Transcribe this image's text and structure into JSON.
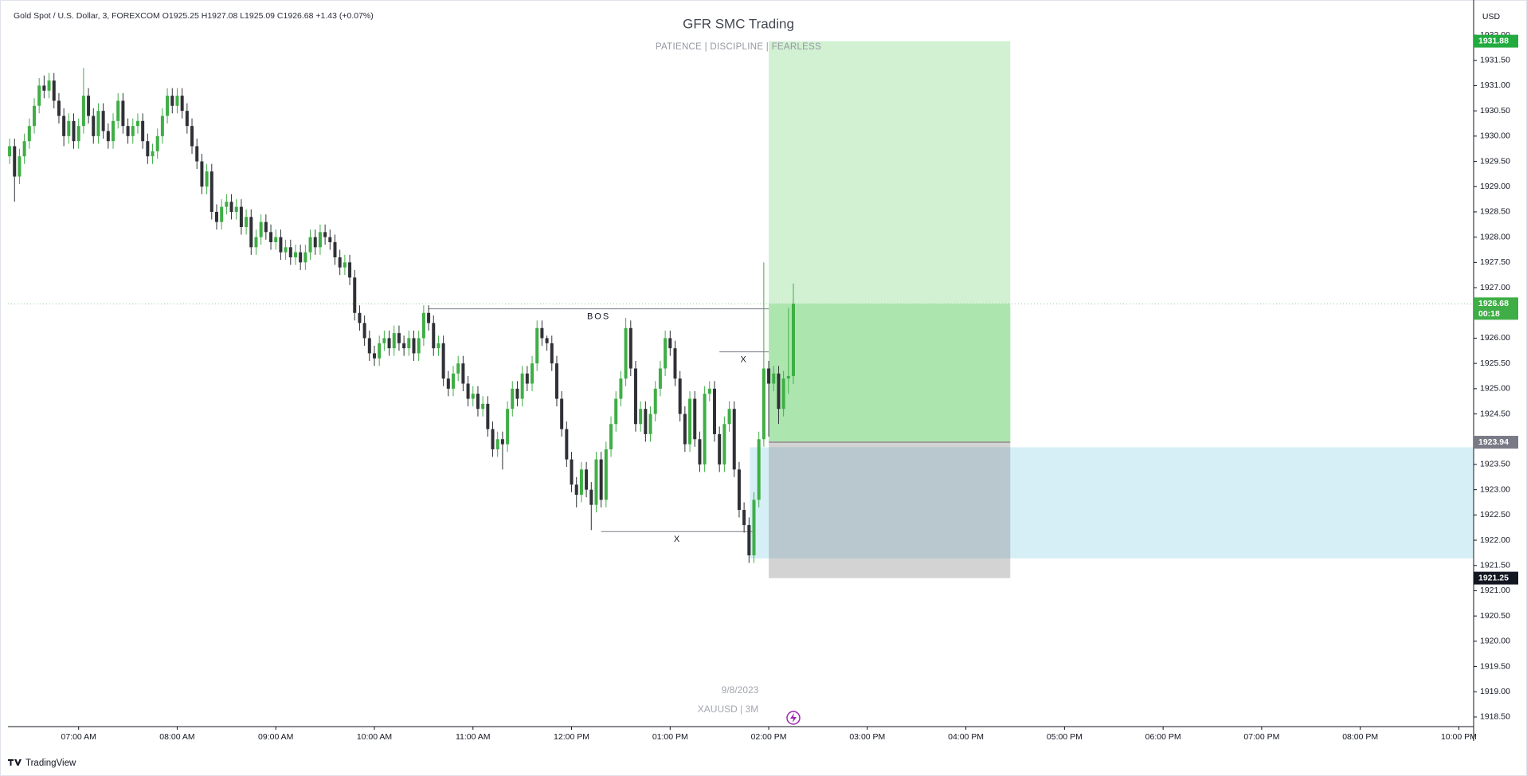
{
  "chart_data": {
    "type": "candlestick",
    "header": "Gold Spot / U.S. Dollar, 3, FOREXCOM  O1925.25  H1927.08  L1925.09  C1926.68  +1.43 (+0.07%)",
    "title": "GFR SMC Trading",
    "subtitle": "PATIENCE  |  DISCIPLINE  |  FEARLESS",
    "watermark": [
      "9/8/2023",
      "XAUUSD | 3M"
    ],
    "currency": "USD",
    "brand": "TradingView",
    "up_color": "#3fae46",
    "down_color": "#2f3136",
    "xlim": [
      377,
      1269
    ],
    "ylim": [
      1918.31,
      1932.6
    ],
    "grid": false,
    "xticks": [
      {
        "value": 420,
        "label": "07:00 AM"
      },
      {
        "value": 480,
        "label": "08:00 AM"
      },
      {
        "value": 540,
        "label": "09:00 AM"
      },
      {
        "value": 600,
        "label": "10:00 AM"
      },
      {
        "value": 660,
        "label": "11:00 AM"
      },
      {
        "value": 720,
        "label": "12:00 PM"
      },
      {
        "value": 780,
        "label": "01:00 PM"
      },
      {
        "value": 840,
        "label": "02:00 PM"
      },
      {
        "value": 900,
        "label": "03:00 PM"
      },
      {
        "value": 960,
        "label": "04:00 PM"
      },
      {
        "value": 1020,
        "label": "05:00 PM"
      },
      {
        "value": 1080,
        "label": "06:00 PM"
      },
      {
        "value": 1140,
        "label": "07:00 PM"
      },
      {
        "value": 1200,
        "label": "08:00 PM"
      },
      {
        "value": 1260,
        "label": "10:00 PM"
      }
    ],
    "yticks": [
      {
        "value": 1918.5,
        "label": "1918.50"
      },
      {
        "value": 1919,
        "label": "1919.00"
      },
      {
        "value": 1919.5,
        "label": "1919.50"
      },
      {
        "value": 1920,
        "label": "1920.00"
      },
      {
        "value": 1920.5,
        "label": "1920.50"
      },
      {
        "value": 1921,
        "label": "1921.00"
      },
      {
        "value": 1921.5,
        "label": "1921.50"
      },
      {
        "value": 1922,
        "label": "1922.00"
      },
      {
        "value": 1922.5,
        "label": "1922.50"
      },
      {
        "value": 1923,
        "label": "1923.00"
      },
      {
        "value": 1923.5,
        "label": "1923.50"
      },
      {
        "value": 1924,
        "label": "1924.00"
      },
      {
        "value": 1924.5,
        "label": "1924.50"
      },
      {
        "value": 1925,
        "label": "1925.00"
      },
      {
        "value": 1925.5,
        "label": "1925.50"
      },
      {
        "value": 1926,
        "label": "1926.00"
      },
      {
        "value": 1926.5,
        "label": "1926.50"
      },
      {
        "value": 1927,
        "label": "1927.00"
      },
      {
        "value": 1927.5,
        "label": "1927.50"
      },
      {
        "value": 1928,
        "label": "1928.00"
      },
      {
        "value": 1928.5,
        "label": "1928.50"
      },
      {
        "value": 1929,
        "label": "1929.00"
      },
      {
        "value": 1929.5,
        "label": "1929.50"
      },
      {
        "value": 1930,
        "label": "1930.00"
      },
      {
        "value": 1930.5,
        "label": "1930.50"
      },
      {
        "value": 1931,
        "label": "1931.00"
      },
      {
        "value": 1931.5,
        "label": "1931.50"
      },
      {
        "value": 1932,
        "label": "1932.00"
      }
    ],
    "x": [
      378,
      381,
      384,
      387,
      390,
      393,
      396,
      399,
      402,
      405,
      408,
      411,
      414,
      417,
      420,
      423,
      426,
      429,
      432,
      435,
      438,
      441,
      444,
      447,
      450,
      453,
      456,
      459,
      462,
      465,
      468,
      471,
      474,
      477,
      480,
      483,
      486,
      489,
      492,
      495,
      498,
      501,
      504,
      507,
      510,
      513,
      516,
      519,
      522,
      525,
      528,
      531,
      534,
      537,
      540,
      543,
      546,
      549,
      552,
      555,
      558,
      561,
      564,
      567,
      570,
      573,
      576,
      579,
      582,
      585,
      588,
      591,
      594,
      597,
      600,
      603,
      606,
      609,
      612,
      615,
      618,
      621,
      624,
      627,
      630,
      633,
      636,
      639,
      642,
      645,
      648,
      651,
      654,
      657,
      660,
      663,
      666,
      669,
      672,
      675,
      678,
      681,
      684,
      687,
      690,
      693,
      696,
      699,
      702,
      705,
      708,
      711,
      714,
      717,
      720,
      723,
      726,
      729,
      732,
      735,
      738,
      741,
      744,
      747,
      750,
      753,
      756,
      759,
      762,
      765,
      768,
      771,
      774,
      777,
      780,
      783,
      786,
      789,
      792,
      795,
      798,
      801,
      804,
      807,
      810,
      813,
      816,
      819,
      822,
      825,
      828,
      831,
      834,
      837,
      840,
      843,
      846,
      849,
      852,
      855
    ],
    "open": [
      1929.6,
      1929.8,
      1929.2,
      1929.6,
      1929.9,
      1930.2,
      1930.6,
      1931.0,
      1930.9,
      1931.1,
      1930.7,
      1930.4,
      1930.0,
      1930.3,
      1929.9,
      1930.2,
      1930.8,
      1930.4,
      1930.0,
      1930.5,
      1930.1,
      1929.9,
      1930.3,
      1930.7,
      1930.2,
      1930.0,
      1930.2,
      1930.3,
      1929.9,
      1929.6,
      1929.7,
      1930.0,
      1930.4,
      1930.8,
      1930.6,
      1930.8,
      1930.5,
      1930.2,
      1929.8,
      1929.5,
      1929.0,
      1929.3,
      1928.5,
      1928.3,
      1928.6,
      1928.7,
      1928.5,
      1928.6,
      1928.2,
      1928.4,
      1927.8,
      1928.0,
      1928.3,
      1928.1,
      1927.9,
      1928.0,
      1927.7,
      1927.8,
      1927.6,
      1927.7,
      1927.5,
      1927.7,
      1928.0,
      1927.8,
      1928.1,
      1928.0,
      1927.9,
      1927.6,
      1927.4,
      1927.5,
      1927.2,
      1926.5,
      1926.3,
      1926.0,
      1925.7,
      1925.6,
      1925.9,
      1926.0,
      1925.8,
      1926.1,
      1925.9,
      1925.8,
      1926.0,
      1925.7,
      1926.0,
      1926.5,
      1926.3,
      1925.8,
      1925.9,
      1925.2,
      1925.0,
      1925.3,
      1925.5,
      1925.1,
      1924.8,
      1924.9,
      1924.6,
      1924.7,
      1924.2,
      1923.8,
      1924.0,
      1923.9,
      1924.6,
      1925.0,
      1924.8,
      1925.3,
      1925.1,
      1925.5,
      1926.2,
      1926.0,
      1925.9,
      1925.5,
      1924.8,
      1924.2,
      1923.6,
      1923.1,
      1922.9,
      1923.4,
      1923.0,
      1922.7,
      1923.6,
      1922.8,
      1923.8,
      1924.3,
      1924.8,
      1925.2,
      1926.2,
      1925.4,
      1924.3,
      1924.6,
      1924.1,
      1924.5,
      1925.0,
      1925.4,
      1926.0,
      1925.8,
      1925.2,
      1924.5,
      1923.9,
      1924.8,
      1924.0,
      1923.5,
      1924.9,
      1925.0,
      1924.1,
      1923.5,
      1924.3,
      1924.6,
      1923.4,
      1922.6,
      1922.3,
      1921.7,
      1922.8,
      1924.0,
      1925.4,
      1925.1,
      1925.3,
      1924.6,
      1925.2,
      1925.25
    ],
    "high": [
      1929.95,
      1929.95,
      1929.75,
      1930.05,
      1930.35,
      1930.75,
      1931.15,
      1931.2,
      1931.25,
      1931.25,
      1930.85,
      1930.55,
      1930.45,
      1930.45,
      1930.35,
      1931.35,
      1930.95,
      1930.55,
      1930.65,
      1930.65,
      1930.25,
      1930.45,
      1930.85,
      1930.85,
      1930.35,
      1930.35,
      1930.45,
      1930.45,
      1930.05,
      1929.85,
      1930.15,
      1930.55,
      1930.95,
      1930.95,
      1930.95,
      1930.95,
      1930.65,
      1930.35,
      1929.95,
      1929.65,
      1929.45,
      1929.45,
      1928.65,
      1928.75,
      1928.85,
      1928.85,
      1928.75,
      1928.75,
      1928.55,
      1928.55,
      1928.15,
      1928.45,
      1928.45,
      1928.25,
      1928.15,
      1928.15,
      1927.95,
      1927.95,
      1927.85,
      1927.85,
      1927.85,
      1928.15,
      1928.15,
      1928.25,
      1928.25,
      1928.15,
      1928.05,
      1927.75,
      1927.65,
      1927.65,
      1927.35,
      1926.65,
      1926.45,
      1926.15,
      1925.85,
      1926.05,
      1926.15,
      1926.15,
      1926.25,
      1926.25,
      1926.05,
      1926.15,
      1926.15,
      1926.15,
      1926.65,
      1926.65,
      1926.45,
      1926.05,
      1926.05,
      1925.35,
      1925.45,
      1925.65,
      1925.65,
      1925.25,
      1925.05,
      1925.05,
      1924.85,
      1924.85,
      1924.35,
      1924.15,
      1924.15,
      1924.75,
      1925.15,
      1925.15,
      1925.45,
      1925.45,
      1925.65,
      1926.35,
      1926.35,
      1926.05,
      1926.05,
      1925.65,
      1924.95,
      1924.35,
      1923.75,
      1923.25,
      1923.55,
      1923.55,
      1923.15,
      1923.75,
      1923.75,
      1923.95,
      1924.45,
      1924.95,
      1925.35,
      1926.4,
      1926.35,
      1925.55,
      1924.75,
      1924.75,
      1924.65,
      1925.15,
      1925.55,
      1926.15,
      1926.15,
      1925.95,
      1925.35,
      1924.65,
      1924.95,
      1924.95,
      1924.15,
      1925.05,
      1925.15,
      1925.15,
      1924.25,
      1924.45,
      1924.75,
      1924.75,
      1923.55,
      1922.75,
      1922.45,
      1922.95,
      1924.15,
      1927.5,
      1925.55,
      1925.45,
      1925.45,
      1925.35,
      1926.6,
      1927.08
    ],
    "low": [
      1929.45,
      1928.7,
      1929.05,
      1929.45,
      1929.75,
      1930.05,
      1930.45,
      1930.75,
      1930.75,
      1930.55,
      1930.25,
      1929.8,
      1929.85,
      1929.75,
      1929.75,
      1930.05,
      1930.25,
      1929.85,
      1929.85,
      1929.95,
      1929.75,
      1929.75,
      1930.15,
      1930.05,
      1929.85,
      1929.85,
      1930.05,
      1929.75,
      1929.45,
      1929.45,
      1929.55,
      1929.85,
      1930.25,
      1930.45,
      1930.45,
      1930.35,
      1930.05,
      1929.65,
      1929.35,
      1928.85,
      1928.85,
      1928.35,
      1928.15,
      1928.15,
      1928.45,
      1928.35,
      1928.35,
      1928.05,
      1928.05,
      1927.65,
      1927.65,
      1927.85,
      1927.95,
      1927.75,
      1927.75,
      1927.55,
      1927.55,
      1927.45,
      1927.45,
      1927.35,
      1927.35,
      1927.55,
      1927.65,
      1927.65,
      1927.85,
      1927.75,
      1927.45,
      1927.25,
      1927.25,
      1927.05,
      1926.35,
      1926.15,
      1925.85,
      1925.55,
      1925.45,
      1925.45,
      1925.75,
      1925.65,
      1925.65,
      1925.75,
      1925.65,
      1925.65,
      1925.55,
      1925.55,
      1925.85,
      1926.15,
      1925.65,
      1925.65,
      1925.05,
      1924.85,
      1924.85,
      1925.15,
      1924.95,
      1924.65,
      1924.65,
      1924.45,
      1924.45,
      1924.05,
      1923.65,
      1923.65,
      1923.4,
      1923.75,
      1924.45,
      1924.65,
      1924.65,
      1924.95,
      1924.95,
      1925.35,
      1925.85,
      1925.75,
      1925.35,
      1924.65,
      1924.05,
      1923.45,
      1922.95,
      1922.65,
      1922.75,
      1922.85,
      1922.2,
      1922.55,
      1922.65,
      1922.65,
      1923.65,
      1924.15,
      1924.65,
      1925.05,
      1925.25,
      1924.15,
      1924.15,
      1923.95,
      1923.95,
      1924.35,
      1924.85,
      1925.25,
      1925.65,
      1925.05,
      1924.35,
      1923.75,
      1923.75,
      1923.85,
      1923.35,
      1923.35,
      1924.75,
      1923.95,
      1923.35,
      1923.35,
      1924.15,
      1923.25,
      1922.45,
      1922.15,
      1921.55,
      1921.55,
      1922.65,
      1923.85,
      1924.05,
      1924.95,
      1924.3,
      1924.45,
      1924.9,
      1925.09
    ],
    "close": [
      1929.8,
      1929.2,
      1929.6,
      1929.9,
      1930.2,
      1930.6,
      1931.0,
      1930.9,
      1931.1,
      1930.7,
      1930.4,
      1930.0,
      1930.3,
      1929.9,
      1930.2,
      1930.8,
      1930.4,
      1930.0,
      1930.5,
      1930.1,
      1929.9,
      1930.3,
      1930.7,
      1930.2,
      1930.0,
      1930.2,
      1930.3,
      1929.9,
      1929.6,
      1929.7,
      1930.0,
      1930.4,
      1930.8,
      1930.6,
      1930.8,
      1930.5,
      1930.2,
      1929.8,
      1929.5,
      1929.0,
      1929.3,
      1928.5,
      1928.3,
      1928.6,
      1928.7,
      1928.5,
      1928.6,
      1928.2,
      1928.4,
      1927.8,
      1928.0,
      1928.3,
      1928.1,
      1927.9,
      1928.0,
      1927.7,
      1927.8,
      1927.6,
      1927.7,
      1927.5,
      1927.7,
      1928.0,
      1927.8,
      1928.1,
      1928.0,
      1927.9,
      1927.6,
      1927.4,
      1927.5,
      1927.2,
      1926.5,
      1926.3,
      1926.0,
      1925.7,
      1925.6,
      1925.9,
      1926.0,
      1925.8,
      1926.1,
      1925.9,
      1925.8,
      1926.0,
      1925.7,
      1926.0,
      1926.5,
      1926.3,
      1925.8,
      1925.9,
      1925.2,
      1925.0,
      1925.3,
      1925.5,
      1925.1,
      1924.8,
      1924.9,
      1924.6,
      1924.7,
      1924.2,
      1923.8,
      1924.0,
      1923.9,
      1924.6,
      1925.0,
      1924.8,
      1925.3,
      1925.1,
      1925.5,
      1926.2,
      1926.0,
      1925.9,
      1925.5,
      1924.8,
      1924.2,
      1923.6,
      1923.1,
      1922.9,
      1923.4,
      1923.0,
      1922.7,
      1923.6,
      1922.8,
      1923.8,
      1924.3,
      1924.8,
      1925.2,
      1926.2,
      1925.4,
      1924.3,
      1924.6,
      1924.1,
      1924.5,
      1925.0,
      1925.4,
      1926.0,
      1925.8,
      1925.2,
      1924.5,
      1923.9,
      1924.8,
      1924.0,
      1923.5,
      1924.9,
      1925.0,
      1924.1,
      1923.5,
      1924.3,
      1924.6,
      1923.4,
      1922.6,
      1922.3,
      1921.7,
      1922.8,
      1924.0,
      1925.4,
      1925.1,
      1925.3,
      1924.6,
      1925.2,
      1925.25,
      1926.68
    ],
    "position": {
      "start": 840,
      "end": 987,
      "target": 1931.88,
      "entry": 1923.94,
      "stop": 1921.25,
      "current": 1926.68
    },
    "zone": {
      "start": 828.5,
      "top": 1923.84,
      "bottom": 1921.64,
      "color": "#d6eff7"
    },
    "annotations": [
      {
        "label": "BOS",
        "price": 1926.58,
        "from": 633,
        "to": 840
      },
      {
        "label": "X",
        "price": 1925.73,
        "from": 810,
        "to": 840
      },
      {
        "label": "X",
        "price": 1922.17,
        "from": 738,
        "to": 831
      }
    ],
    "price_tags": [
      {
        "value": 1931.88,
        "color": "#22ab3f"
      },
      {
        "value": 1926.68,
        "color": "#3fae46",
        "countdown": "00:18"
      },
      {
        "value": 1923.94,
        "color": "#787b86"
      },
      {
        "value": 1921.25,
        "color": "#131722"
      }
    ]
  }
}
